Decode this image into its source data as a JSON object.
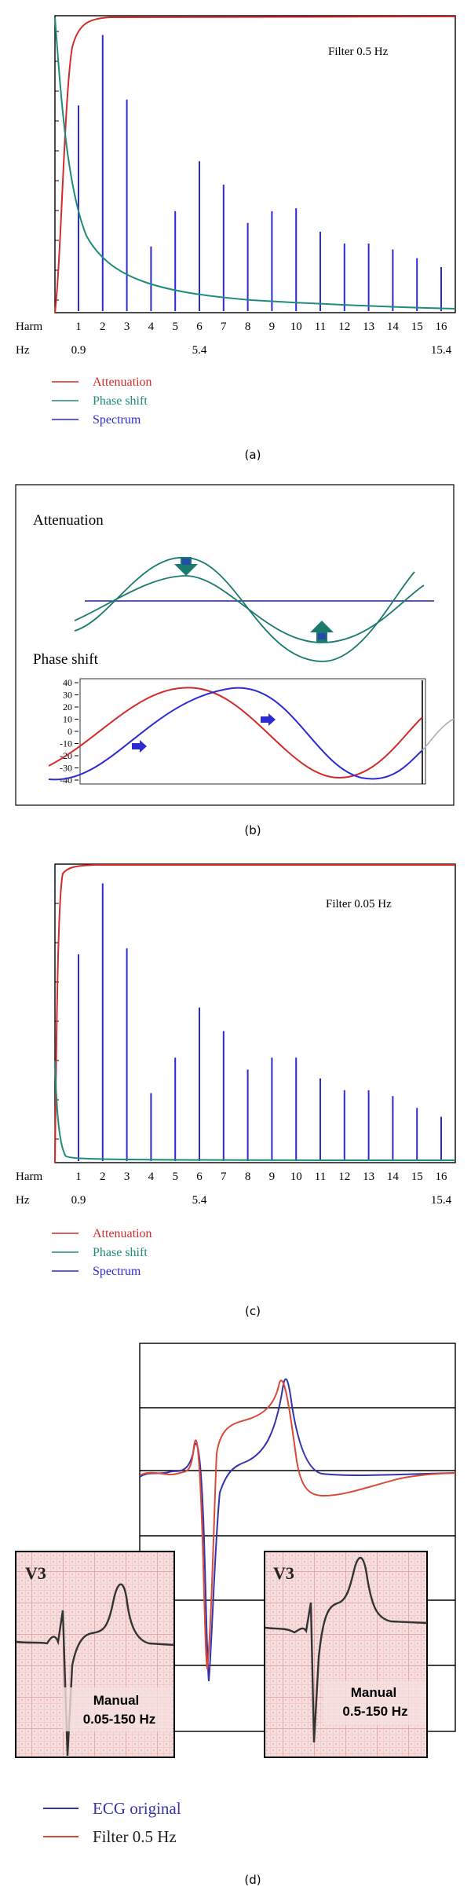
{
  "figure": {
    "caption_a": "(a)",
    "caption_b": "(b)",
    "caption_c": "(c)",
    "caption_d": "(d)"
  },
  "colors": {
    "attenuation": "#d42a2a",
    "phase_shift": "#1e8c78",
    "spectrum": "#2b2bd4",
    "ecg_original": "#3333aa",
    "ecg_filter": "#d84a3a",
    "wave_green": "#1b7a6e"
  },
  "chart_data": [
    {
      "type": "bar",
      "panel": "a",
      "annotation": "Filter 0.5 Hz",
      "row_label_harm": "Harm",
      "row_label_hz": "Hz",
      "categories": [
        "1",
        "2",
        "3",
        "4",
        "5",
        "6",
        "7",
        "8",
        "9",
        "10",
        "11",
        "12",
        "13",
        "14",
        "15",
        "16"
      ],
      "hz_labels": [
        {
          "at": 1,
          "text": "0.9"
        },
        {
          "at": 6,
          "text": "5.4"
        },
        {
          "at": 16,
          "text": "15.4"
        }
      ],
      "values": [
        0.7,
        0.94,
        0.72,
        0.22,
        0.34,
        0.51,
        0.43,
        0.3,
        0.34,
        0.35,
        0.27,
        0.23,
        0.23,
        0.21,
        0.18,
        0.15
      ],
      "ylim": [
        0,
        1
      ],
      "legend": [
        {
          "name": "Attenuation",
          "color": "#d42a2a"
        },
        {
          "name": "Phase shift",
          "color": "#1e8c78"
        },
        {
          "name": "Spectrum",
          "color": "#2b2bd4"
        }
      ],
      "legend_position": "bottom-left",
      "attenuation_curve": "rises steeply to plateau before harmonic 1",
      "phase_curve": "decays from top-left toward zero"
    },
    {
      "type": "line",
      "panel": "b",
      "title_attenuation": "Attenuation",
      "title_phase": "Phase shift",
      "y_ticks": [
        "40",
        "30",
        "20",
        "10",
        "0",
        "-10",
        "-20",
        "-30",
        "-40"
      ],
      "ylim": [
        -40,
        40
      ],
      "series": [
        {
          "color": "#d42a2a"
        },
        {
          "color": "#2b2bd4"
        }
      ]
    },
    {
      "type": "bar",
      "panel": "c",
      "annotation": "Filter 0.05 Hz",
      "row_label_harm": "Harm",
      "row_label_hz": "Hz",
      "categories": [
        "1",
        "2",
        "3",
        "4",
        "5",
        "6",
        "7",
        "8",
        "9",
        "10",
        "11",
        "12",
        "13",
        "14",
        "15",
        "16"
      ],
      "hz_labels": [
        {
          "at": 1,
          "text": "0.9"
        },
        {
          "at": 6,
          "text": "5.4"
        },
        {
          "at": 16,
          "text": "15.4"
        }
      ],
      "values": [
        0.7,
        0.94,
        0.72,
        0.23,
        0.35,
        0.52,
        0.44,
        0.31,
        0.35,
        0.35,
        0.28,
        0.24,
        0.24,
        0.22,
        0.18,
        0.15
      ],
      "ylim": [
        0,
        1
      ],
      "legend": [
        {
          "name": "Attenuation",
          "color": "#d42a2a"
        },
        {
          "name": "Phase shift",
          "color": "#1e8c78"
        },
        {
          "name": "Spectrum",
          "color": "#2b2bd4"
        }
      ],
      "legend_position": "bottom-left"
    },
    {
      "type": "line",
      "panel": "d",
      "legend": [
        {
          "name": "ECG original",
          "color": "#3333aa"
        },
        {
          "name": "Filter 0.5 Hz",
          "color": "#d84a3a"
        }
      ],
      "inset_left": {
        "lead": "V3",
        "label_line1": "Manual",
        "label_line2": "0.05-150 Hz"
      },
      "inset_right": {
        "lead": "V3",
        "label_line1": "Manual",
        "label_line2": "0.5-150 Hz"
      }
    }
  ]
}
